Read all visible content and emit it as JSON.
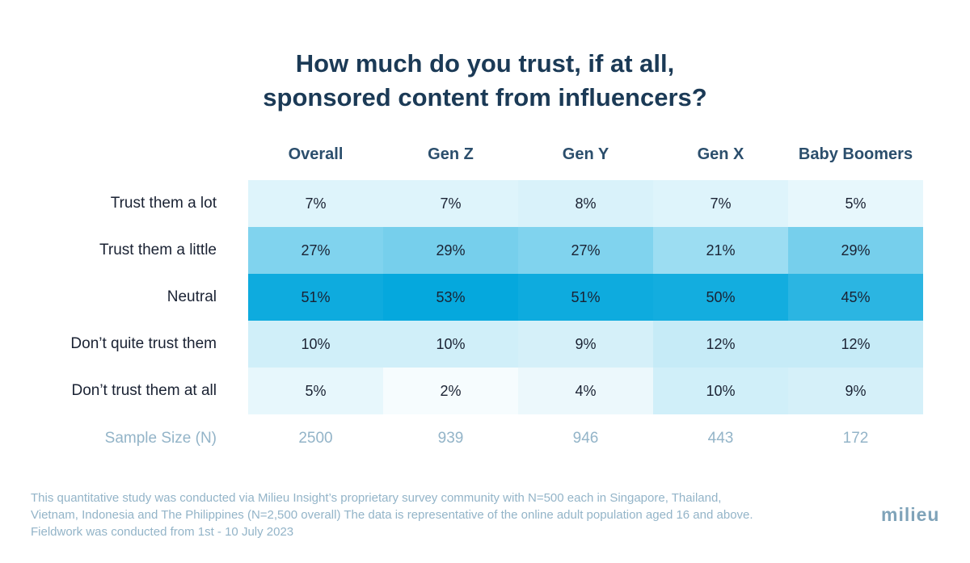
{
  "title": [
    "How much do you trust, if at all,",
    "sponsored content from influencers?"
  ],
  "colors": {
    "title": "#1b3a56",
    "cell_scale_min": "#ffffff",
    "cell_scale_max": "#05a8dd",
    "muted": "#93b4c8"
  },
  "chart_data": {
    "type": "table",
    "columns": [
      "Overall",
      "Gen Z",
      "Gen Y",
      "Gen X",
      "Baby Boomers"
    ],
    "rows": [
      {
        "label": "Trust them a lot",
        "values": [
          7,
          7,
          8,
          7,
          5
        ],
        "display": [
          "7%",
          "7%",
          "8%",
          "7%",
          "5%"
        ]
      },
      {
        "label": "Trust them a little",
        "values": [
          27,
          29,
          27,
          21,
          29
        ],
        "display": [
          "27%",
          "29%",
          "27%",
          "21%",
          "29%"
        ]
      },
      {
        "label": "Neutral",
        "values": [
          51,
          53,
          51,
          50,
          45
        ],
        "display": [
          "51%",
          "53%",
          "51%",
          "50%",
          "45%"
        ]
      },
      {
        "label": "Don’t quite trust them",
        "values": [
          10,
          10,
          9,
          12,
          12
        ],
        "display": [
          "10%",
          "10%",
          "9%",
          "12%",
          "12%"
        ]
      },
      {
        "label": "Don’t trust them at all",
        "values": [
          5,
          2,
          4,
          10,
          9
        ],
        "display": [
          "5%",
          "2%",
          "4%",
          "10%",
          "9%"
        ]
      }
    ],
    "sample_size": {
      "label": "Sample Size (N)",
      "values": [
        "2500",
        "939",
        "946",
        "443",
        "172"
      ]
    }
  },
  "footnote": [
    "This quantitative study was conducted via Milieu Insight’s proprietary survey community with N=500 each in Singapore, Thailand,",
    "Vietnam, Indonesia and The Philippines (N=2,500 overall) The data is representative of the online adult population aged 16 and above.",
    "Fieldwork was conducted from 1st  - 10 July 2023"
  ],
  "logo": "milieu"
}
